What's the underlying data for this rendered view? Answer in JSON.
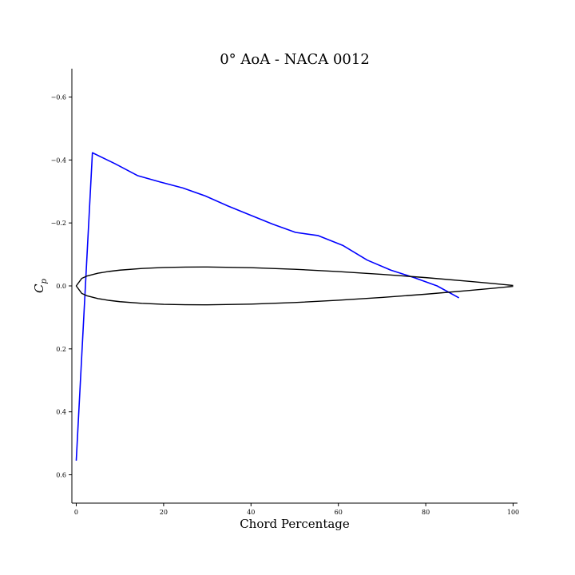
{
  "chart_data": {
    "type": "line",
    "title": "0° AoA - NACA 0012",
    "xlabel": "Chord Percentage",
    "ylabel": "C_p",
    "xlim": [
      -1,
      101
    ],
    "ylim": [
      0.69,
      -0.69
    ],
    "y_inverted": true,
    "grid": false,
    "xticks": [
      0,
      20,
      40,
      60,
      80,
      100
    ],
    "xtick_labels": [
      "0",
      "20",
      "40",
      "60",
      "80",
      "100"
    ],
    "yticks": [
      -0.6,
      -0.4,
      -0.2,
      0.0,
      0.2,
      0.4,
      0.6
    ],
    "ytick_labels": [
      "−0.6",
      "−0.4",
      "−0.2",
      "0.0",
      "0.2",
      "0.4",
      "0.6"
    ],
    "series": [
      {
        "color": "#0000ff",
        "x": [
          0,
          3.7,
          8.9,
          14.1,
          19.2,
          24.4,
          29.5,
          34.7,
          39.8,
          45.0,
          50.2,
          55.3,
          61.1,
          66.6,
          72.0,
          77.4,
          82.6,
          87.6
        ],
        "y": [
          0.555,
          -0.423,
          -0.388,
          -0.35,
          -0.33,
          -0.311,
          -0.286,
          -0.254,
          -0.225,
          -0.196,
          -0.17,
          -0.16,
          -0.128,
          -0.082,
          -0.05,
          -0.026,
          0.0,
          0.038
        ]
      },
      {
        "color": "#000000",
        "x": [
          100,
          95,
          90,
          80,
          70,
          60,
          50,
          40,
          30,
          25,
          20,
          15,
          10,
          7.5,
          5,
          2.5,
          1.25,
          0,
          1.25,
          2.5,
          5,
          7.5,
          10,
          15,
          20,
          25,
          30,
          40,
          50,
          60,
          70,
          80,
          90,
          95,
          100
        ],
        "y": [
          -0.0013,
          -0.0081,
          -0.0145,
          -0.0263,
          -0.0367,
          -0.0456,
          -0.0529,
          -0.058,
          -0.0602,
          -0.0599,
          -0.0585,
          -0.0553,
          -0.0501,
          -0.046,
          -0.0404,
          -0.0316,
          -0.0237,
          0,
          0.0237,
          0.0316,
          0.0404,
          0.046,
          0.0501,
          0.0553,
          0.0585,
          0.0599,
          0.0602,
          0.058,
          0.0529,
          0.0456,
          0.0367,
          0.0263,
          0.0145,
          0.0081,
          0.0013
        ]
      }
    ]
  }
}
